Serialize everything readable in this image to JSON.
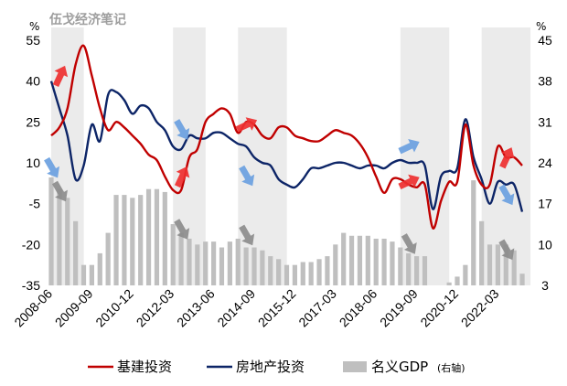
{
  "watermark": "伍戈经济笔记",
  "chart_data": {
    "type": "line",
    "left_axis": {
      "unit": "%",
      "ticks": [
        55,
        40,
        25,
        10,
        -5,
        -20,
        -35
      ],
      "range": [
        -35,
        55
      ]
    },
    "right_axis": {
      "unit": "%",
      "ticks": [
        45,
        38,
        31,
        24,
        17,
        10,
        3
      ],
      "range": [
        3,
        45
      ]
    },
    "x_tick_labels": [
      "2008-06",
      "2009-09",
      "2010-12",
      "2012-03",
      "2013-06",
      "2014-09",
      "2015-12",
      "2017-03",
      "2018-06",
      "2019-09",
      "2020-12",
      "2022-03"
    ],
    "shaded_periods": [
      [
        "2008-06",
        "2009-03"
      ],
      [
        "2012-03",
        "2012-12"
      ],
      [
        "2014-03",
        "2015-06"
      ],
      [
        "2019-03",
        "2020-06"
      ],
      [
        "2021-09",
        "2022-12"
      ]
    ],
    "series": [
      {
        "name": "基建投资",
        "axis": "left",
        "color": "#c00000",
        "x": [
          "2008-06",
          "2008-09",
          "2008-12",
          "2009-03",
          "2009-06",
          "2009-09",
          "2009-12",
          "2010-03",
          "2010-06",
          "2010-09",
          "2010-12",
          "2011-03",
          "2011-06",
          "2011-09",
          "2011-12",
          "2012-03",
          "2012-06",
          "2012-09",
          "2012-12",
          "2013-03",
          "2013-06",
          "2013-09",
          "2013-12",
          "2014-03",
          "2014-06",
          "2014-09",
          "2014-12",
          "2015-03",
          "2015-06",
          "2015-09",
          "2015-12",
          "2016-03",
          "2016-06",
          "2016-09",
          "2016-12",
          "2017-03",
          "2017-06",
          "2017-09",
          "2017-12",
          "2018-03",
          "2018-06",
          "2018-09",
          "2018-12",
          "2019-03",
          "2019-06",
          "2019-09",
          "2019-12",
          "2020-03",
          "2020-06",
          "2020-09",
          "2020-12",
          "2021-03",
          "2021-06",
          "2021-09",
          "2021-12",
          "2022-03",
          "2022-06",
          "2022-09",
          "2022-12"
        ],
        "values": [
          20,
          23,
          30,
          46,
          53,
          42,
          30,
          22,
          25,
          23,
          20,
          17,
          13,
          11,
          5,
          0,
          0,
          12,
          15,
          25,
          28,
          30,
          28,
          21,
          25,
          24,
          20,
          19,
          23,
          23,
          20,
          19,
          18,
          18,
          20,
          22,
          21,
          20,
          17,
          12,
          5,
          -1,
          4,
          4,
          2,
          1,
          2,
          -14,
          -4,
          3,
          3,
          24,
          9,
          2,
          2,
          16,
          12,
          12,
          9
        ]
      },
      {
        "name": "房地产投资",
        "axis": "left",
        "color": "#0d2567",
        "x": [
          "2008-06",
          "2008-09",
          "2008-12",
          "2009-03",
          "2009-06",
          "2009-09",
          "2009-12",
          "2010-03",
          "2010-06",
          "2010-09",
          "2010-12",
          "2011-03",
          "2011-06",
          "2011-09",
          "2011-12",
          "2012-03",
          "2012-06",
          "2012-09",
          "2012-12",
          "2013-03",
          "2013-06",
          "2013-09",
          "2013-12",
          "2014-03",
          "2014-06",
          "2014-09",
          "2014-12",
          "2015-03",
          "2015-06",
          "2015-09",
          "2015-12",
          "2016-03",
          "2016-06",
          "2016-09",
          "2016-12",
          "2017-03",
          "2017-06",
          "2017-09",
          "2017-12",
          "2018-03",
          "2018-06",
          "2018-09",
          "2018-12",
          "2019-03",
          "2019-06",
          "2019-09",
          "2019-12",
          "2020-03",
          "2020-06",
          "2020-09",
          "2020-12",
          "2021-03",
          "2021-06",
          "2021-09",
          "2021-12",
          "2022-03",
          "2022-06",
          "2022-09",
          "2022-12"
        ],
        "values": [
          40,
          30,
          20,
          4,
          9,
          24,
          18,
          35,
          36,
          33,
          28,
          31,
          30,
          25,
          22,
          16,
          15,
          20,
          19,
          19,
          21,
          21,
          19,
          17,
          16,
          12,
          10,
          9,
          4,
          2,
          1,
          4,
          8,
          8,
          9,
          10,
          10,
          9,
          8,
          9,
          9,
          8,
          10,
          11,
          10,
          10,
          9,
          -7,
          5,
          7,
          8,
          26,
          12,
          4,
          -5,
          3,
          2,
          2,
          -8
        ]
      }
    ],
    "bar_series": {
      "name": "名义GDP",
      "axis": "right",
      "color": "#bfbfbf",
      "x": [
        "2008-06",
        "2008-09",
        "2008-12",
        "2009-03",
        "2009-06",
        "2009-09",
        "2009-12",
        "2010-03",
        "2010-06",
        "2010-09",
        "2010-12",
        "2011-03",
        "2011-06",
        "2011-09",
        "2011-12",
        "2012-03",
        "2012-06",
        "2012-09",
        "2012-12",
        "2013-03",
        "2013-06",
        "2013-09",
        "2013-12",
        "2014-03",
        "2014-06",
        "2014-09",
        "2014-12",
        "2015-03",
        "2015-06",
        "2015-09",
        "2015-12",
        "2016-03",
        "2016-06",
        "2016-09",
        "2016-12",
        "2017-03",
        "2017-06",
        "2017-09",
        "2017-12",
        "2018-03",
        "2018-06",
        "2018-09",
        "2018-12",
        "2019-03",
        "2019-06",
        "2019-09",
        "2019-12",
        "2020-03",
        "2020-06",
        "2020-09",
        "2020-12",
        "2021-03",
        "2021-06",
        "2021-09",
        "2021-12",
        "2022-03",
        "2022-06",
        "2022-09",
        "2022-12"
      ],
      "values": [
        21.5,
        19.5,
        18,
        14,
        6.5,
        6.5,
        8.5,
        12,
        18.5,
        18.5,
        18,
        18.5,
        19.5,
        19.5,
        19,
        13.5,
        12,
        11,
        10,
        10.5,
        10.5,
        9.5,
        10.5,
        11,
        9.5,
        9.5,
        9,
        8,
        7.5,
        6.5,
        6.5,
        7,
        7,
        7.5,
        8,
        10,
        12,
        11.5,
        11.5,
        11.5,
        11,
        11,
        10.5,
        9.5,
        8.5,
        8,
        8,
        2,
        3,
        3.5,
        4.5,
        6.5,
        21,
        14,
        10,
        10,
        10,
        9,
        5
      ]
    },
    "legend": [
      {
        "label": "基建投资",
        "type": "line",
        "color": "#c00000"
      },
      {
        "label": "房地产投资",
        "type": "line",
        "color": "#0d2567"
      },
      {
        "label": "名义GDP",
        "suffix": "(右轴)",
        "type": "bar",
        "color": "#bfbfbf"
      }
    ],
    "arrows": [
      {
        "date": "2008-06",
        "axis": "left",
        "value": 42,
        "dir": "up",
        "color": "#ee2f2f"
      },
      {
        "date": "2008-03",
        "axis": "left",
        "value": 8,
        "dir": "down",
        "color": "#6a9fe0"
      },
      {
        "date": "2008-06",
        "axis": "right",
        "value": 19,
        "dir": "down",
        "color": "#8c8c8c"
      },
      {
        "date": "2012-03",
        "axis": "left",
        "value": 22,
        "dir": "down",
        "color": "#6a9fe0"
      },
      {
        "date": "2012-03",
        "axis": "left",
        "value": 5,
        "dir": "up",
        "color": "#ee2f2f"
      },
      {
        "date": "2012-03",
        "axis": "right",
        "value": 12.5,
        "dir": "down",
        "color": "#8c8c8c"
      },
      {
        "date": "2014-03",
        "axis": "left",
        "value": 24,
        "dir": "up-right",
        "color": "#ee2f2f"
      },
      {
        "date": "2014-03",
        "axis": "left",
        "value": 5,
        "dir": "down",
        "color": "#6a9fe0"
      },
      {
        "date": "2014-03",
        "axis": "right",
        "value": 11.5,
        "dir": "down",
        "color": "#8c8c8c"
      },
      {
        "date": "2019-03",
        "axis": "left",
        "value": 16,
        "dir": "up-right",
        "color": "#6a9fe0"
      },
      {
        "date": "2019-03",
        "axis": "left",
        "value": 3,
        "dir": "up-right",
        "color": "#ee2f2f"
      },
      {
        "date": "2019-03",
        "axis": "right",
        "value": 10,
        "dir": "down",
        "color": "#8c8c8c"
      },
      {
        "date": "2022-03",
        "axis": "left",
        "value": 12,
        "dir": "up",
        "color": "#ee2f2f"
      },
      {
        "date": "2022-03",
        "axis": "left",
        "value": -2,
        "dir": "down",
        "color": "#6a9fe0"
      },
      {
        "date": "2022-03",
        "axis": "right",
        "value": 9,
        "dir": "down",
        "color": "#8c8c8c"
      }
    ]
  }
}
